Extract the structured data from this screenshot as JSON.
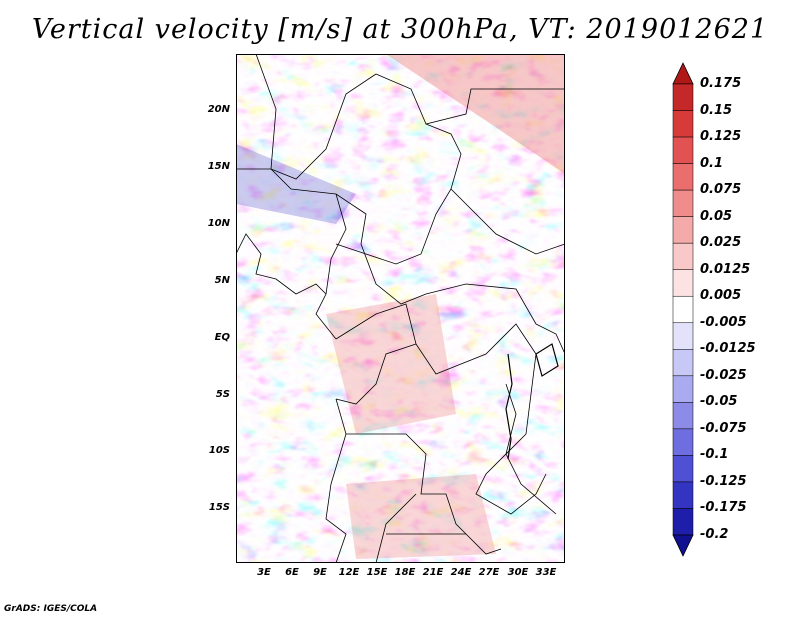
{
  "title": "Vertical velocity [m/s] at 300hPa, VT: 2019012621",
  "credit": "GrADS: IGES/COLA",
  "map": {
    "lat_labels": [
      "20N",
      "15N",
      "10N",
      "5N",
      "EQ",
      "5S",
      "10S",
      "15S"
    ],
    "lon_labels": [
      "3E",
      "6E",
      "9E",
      "12E",
      "15E",
      "18E",
      "21E",
      "24E",
      "27E",
      "30E",
      "33E"
    ]
  },
  "colorbar": {
    "levels": [
      "0.175",
      "0.15",
      "0.125",
      "0.1",
      "0.075",
      "0.05",
      "0.025",
      "0.0125",
      "0.005",
      "-0.005",
      "-0.0125",
      "-0.025",
      "-0.05",
      "-0.075",
      "-0.1",
      "-0.125",
      "-0.175",
      "-0.2"
    ],
    "colors": [
      "#b01818",
      "#c42828",
      "#d83a3a",
      "#e25252",
      "#ea6e6e",
      "#f08c8c",
      "#f5aaaa",
      "#f9c8c8",
      "#fce2e2",
      "#ffffff",
      "#e2e2fb",
      "#c8c8f6",
      "#aaaaf0",
      "#8c8ce8",
      "#6e6ee0",
      "#5050d4",
      "#3434c2",
      "#1e1eaa",
      "#101090"
    ]
  }
}
